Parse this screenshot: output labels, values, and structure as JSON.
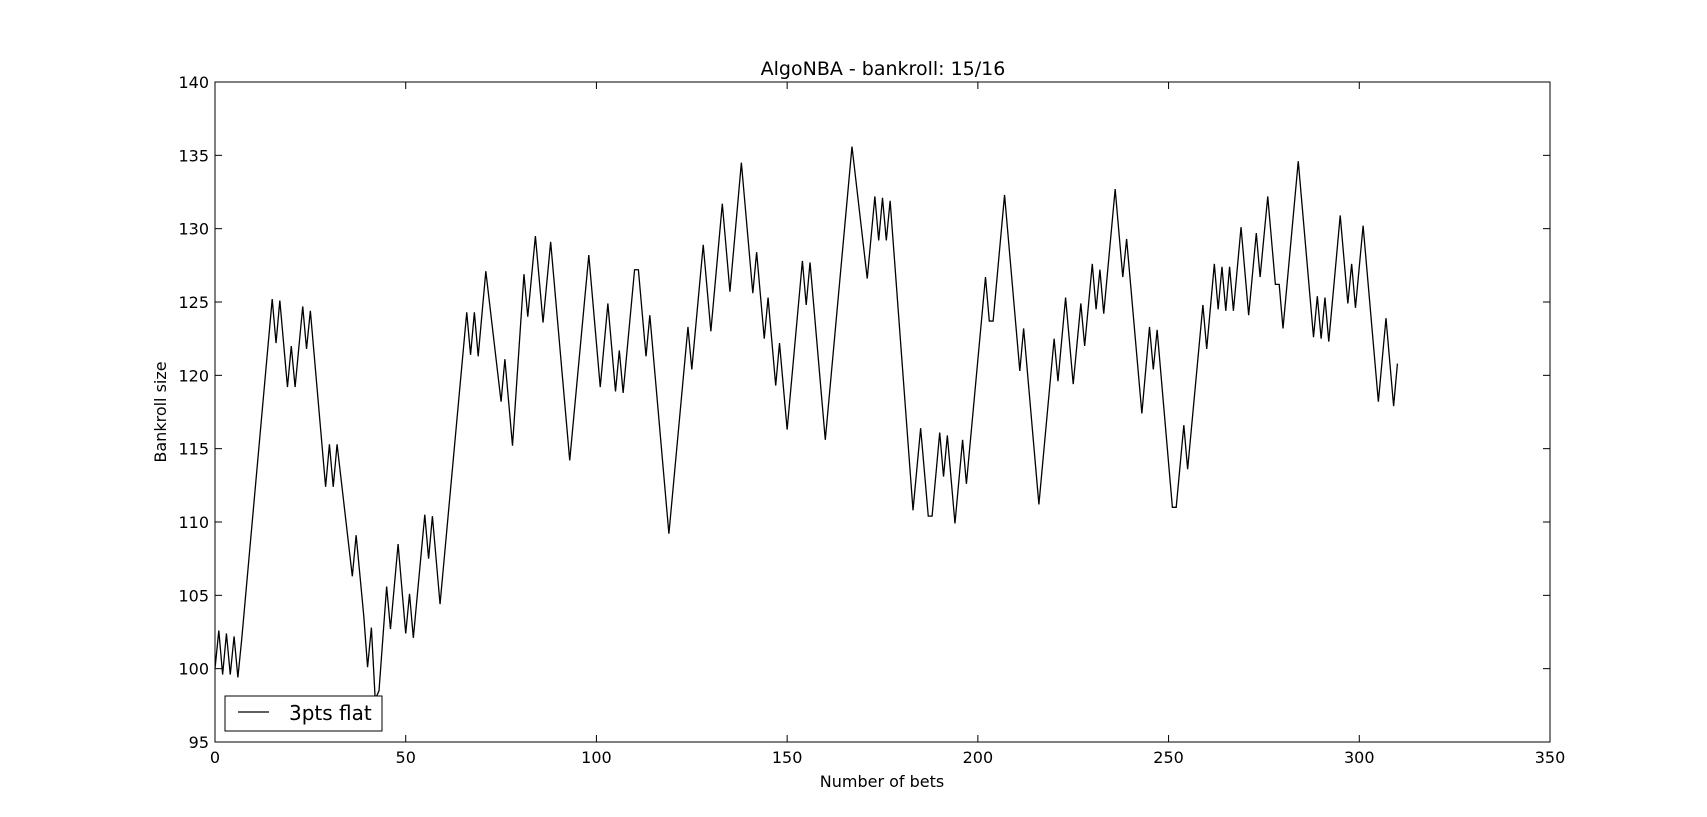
{
  "chart_data": {
    "type": "line",
    "title": "AlgoNBA - bankroll: 15/16",
    "xlabel": "Number of bets",
    "ylabel": "Bankroll size",
    "xlim": [
      0,
      350
    ],
    "ylim": [
      95,
      140
    ],
    "xticks": [
      "0",
      "50",
      "100",
      "150",
      "200",
      "250",
      "300",
      "350"
    ],
    "yticks": [
      "95",
      "100",
      "105",
      "110",
      "115",
      "120",
      "125",
      "130",
      "135",
      "140"
    ],
    "grid": false,
    "legend_position": "lower-left",
    "series": [
      {
        "name": "3pts flat",
        "color": "#000000",
        "points": [
          [
            0,
            100
          ],
          [
            1,
            102.6
          ],
          [
            2,
            99.6
          ],
          [
            3,
            102.4
          ],
          [
            4,
            99.6
          ],
          [
            5,
            102.2
          ],
          [
            6,
            99.4
          ],
          [
            7,
            102
          ],
          [
            15,
            125.2
          ],
          [
            16,
            122.2
          ],
          [
            17,
            125.1
          ],
          [
            19,
            119.2
          ],
          [
            20,
            122
          ],
          [
            21,
            119.2
          ],
          [
            23,
            124.7
          ],
          [
            24,
            121.8
          ],
          [
            25,
            124.4
          ],
          [
            29,
            112.4
          ],
          [
            30,
            115.3
          ],
          [
            31,
            112.4
          ],
          [
            32,
            115.3
          ],
          [
            36,
            106.3
          ],
          [
            37,
            109.1
          ],
          [
            39,
            103.6
          ],
          [
            40,
            100.1
          ],
          [
            41,
            102.8
          ],
          [
            42,
            97.9
          ],
          [
            43,
            98.5
          ],
          [
            45,
            105.6
          ],
          [
            46,
            102.7
          ],
          [
            48,
            108.5
          ],
          [
            50,
            102.4
          ],
          [
            51,
            105.1
          ],
          [
            52,
            102.1
          ],
          [
            55,
            110.5
          ],
          [
            56,
            107.5
          ],
          [
            57,
            110.4
          ],
          [
            59,
            104.4
          ],
          [
            66,
            124.3
          ],
          [
            67,
            121.4
          ],
          [
            68,
            124.3
          ],
          [
            69,
            121.3
          ],
          [
            71,
            127.1
          ],
          [
            75,
            118.2
          ],
          [
            76,
            121.1
          ],
          [
            78,
            115.2
          ],
          [
            81,
            126.9
          ],
          [
            82,
            124
          ],
          [
            84,
            129.5
          ],
          [
            86,
            123.6
          ],
          [
            88,
            129.1
          ],
          [
            93,
            114.2
          ],
          [
            98,
            128.2
          ],
          [
            101,
            119.2
          ],
          [
            103,
            124.9
          ],
          [
            105,
            118.9
          ],
          [
            106,
            121.7
          ],
          [
            107,
            118.8
          ],
          [
            110,
            127.2
          ],
          [
            111,
            127.2
          ],
          [
            113,
            121.3
          ],
          [
            114,
            124.1
          ],
          [
            119,
            109.2
          ],
          [
            124,
            123.3
          ],
          [
            125,
            120.4
          ],
          [
            128,
            128.9
          ],
          [
            130,
            123
          ],
          [
            133,
            131.7
          ],
          [
            135,
            125.7
          ],
          [
            138,
            134.5
          ],
          [
            141,
            125.6
          ],
          [
            142,
            128.4
          ],
          [
            144,
            122.5
          ],
          [
            145,
            125.3
          ],
          [
            147,
            119.3
          ],
          [
            148,
            122.2
          ],
          [
            150,
            116.3
          ],
          [
            154,
            127.8
          ],
          [
            155,
            124.8
          ],
          [
            156,
            127.7
          ],
          [
            160,
            115.6
          ],
          [
            167,
            135.6
          ],
          [
            171,
            126.6
          ],
          [
            173,
            132.2
          ],
          [
            174,
            129.2
          ],
          [
            175,
            132.1
          ],
          [
            176,
            129.2
          ],
          [
            177,
            131.9
          ],
          [
            183,
            110.8
          ],
          [
            185,
            116.4
          ],
          [
            187,
            110.4
          ],
          [
            188,
            110.4
          ],
          [
            190,
            116.1
          ],
          [
            191,
            113.1
          ],
          [
            192,
            115.9
          ],
          [
            194,
            109.9
          ],
          [
            196,
            115.6
          ],
          [
            197,
            112.6
          ],
          [
            202,
            126.7
          ],
          [
            203,
            123.7
          ],
          [
            204,
            123.7
          ],
          [
            207,
            132.3
          ],
          [
            211,
            120.3
          ],
          [
            212,
            123.2
          ],
          [
            216,
            111.2
          ],
          [
            220,
            122.5
          ],
          [
            221,
            119.6
          ],
          [
            223,
            125.3
          ],
          [
            225,
            119.4
          ],
          [
            227,
            124.9
          ],
          [
            228,
            122
          ],
          [
            230,
            127.6
          ],
          [
            231,
            124.5
          ],
          [
            232,
            127.2
          ],
          [
            233,
            124.2
          ],
          [
            236,
            132.7
          ],
          [
            238,
            126.7
          ],
          [
            239,
            129.3
          ],
          [
            243,
            117.4
          ],
          [
            245,
            123.3
          ],
          [
            246,
            120.4
          ],
          [
            247,
            123.1
          ],
          [
            251,
            111
          ],
          [
            252,
            111
          ],
          [
            254,
            116.6
          ],
          [
            255,
            113.6
          ],
          [
            259,
            124.8
          ],
          [
            260,
            121.8
          ],
          [
            262,
            127.6
          ],
          [
            263,
            124.5
          ],
          [
            264,
            127.4
          ],
          [
            265,
            124.4
          ],
          [
            266,
            127.4
          ],
          [
            267,
            124.4
          ],
          [
            269,
            130.1
          ],
          [
            271,
            124.1
          ],
          [
            273,
            129.7
          ],
          [
            274,
            126.7
          ],
          [
            276,
            132.2
          ],
          [
            278,
            126.2
          ],
          [
            279,
            126.2
          ],
          [
            280,
            123.2
          ],
          [
            284,
            134.6
          ],
          [
            288,
            122.6
          ],
          [
            289,
            125.4
          ],
          [
            290,
            122.5
          ],
          [
            291,
            125.3
          ],
          [
            292,
            122.3
          ],
          [
            295,
            130.9
          ],
          [
            297,
            124.9
          ],
          [
            298,
            127.6
          ],
          [
            299,
            124.6
          ],
          [
            301,
            130.2
          ],
          [
            305,
            118.2
          ],
          [
            307,
            123.9
          ],
          [
            309,
            117.9
          ],
          [
            310,
            120.8
          ]
        ]
      }
    ]
  }
}
